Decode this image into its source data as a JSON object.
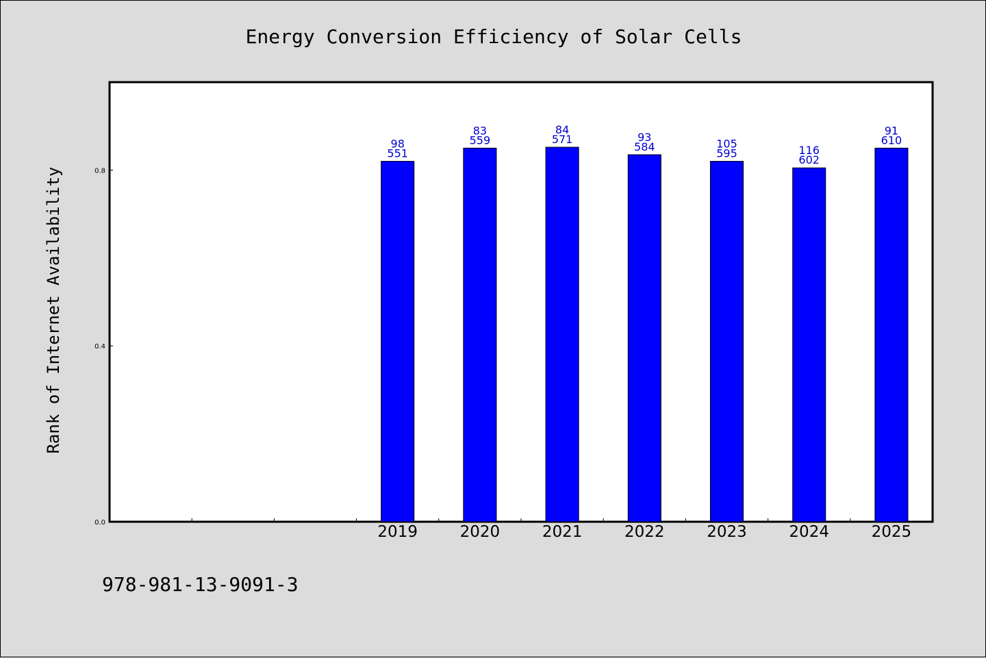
{
  "chart_data": {
    "type": "bar",
    "title": "Energy Conversion Efficiency of Solar Cells",
    "xlabel": "",
    "ylabel": "Rank of Internet Availability",
    "categories": [
      "",
      "",
      "",
      "2019",
      "2020",
      "2021",
      "2022",
      "2023",
      "2024",
      "2025"
    ],
    "values": [
      null,
      null,
      null,
      0.82,
      0.85,
      0.852,
      0.835,
      0.82,
      0.805,
      0.85
    ],
    "labels_top": [
      "",
      "",
      "",
      "98",
      "83",
      "84",
      "93",
      "105",
      "116",
      "91"
    ],
    "labels_bottom": [
      "",
      "",
      "",
      "551",
      "559",
      "571",
      "584",
      "595",
      "602",
      "610"
    ],
    "yticks": [
      "0.0",
      "0.4",
      "0.8"
    ],
    "ytick_values": [
      0.0,
      0.4,
      0.8
    ],
    "ylim": [
      0,
      1.0
    ],
    "grid": false,
    "bar_color": "#0000ff",
    "label_color": "#0000cc"
  },
  "footnote": "978-981-13-9091-3"
}
